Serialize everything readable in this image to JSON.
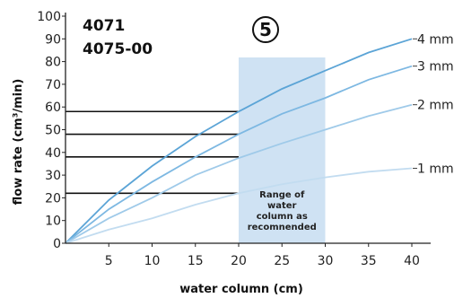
{
  "header": {
    "model_line_1": "4071",
    "model_line_2": "4075-00",
    "badge": "5"
  },
  "chart_data": {
    "type": "line",
    "xlabel": "water column (cm)",
    "ylabel": "flow rate (cm³/min)",
    "xlim": [
      0,
      45
    ],
    "ylim": [
      0,
      100
    ],
    "x_ticks": [
      5,
      10,
      15,
      20,
      25,
      30,
      35,
      40
    ],
    "y_ticks": [
      0,
      10,
      20,
      30,
      40,
      50,
      60,
      70,
      80,
      90,
      100
    ],
    "grid": false,
    "series": [
      {
        "name": "4 mm",
        "color": "#5ba4d6",
        "x": [
          0,
          5,
          10,
          15,
          20,
          25,
          30,
          35,
          40
        ],
        "y": [
          0,
          19,
          34,
          47,
          58,
          68,
          76,
          84,
          90
        ]
      },
      {
        "name": "3 mm",
        "color": "#7db8e2",
        "x": [
          0,
          5,
          10,
          15,
          20,
          25,
          30,
          35,
          40
        ],
        "y": [
          0,
          15,
          27,
          38,
          48,
          57,
          64,
          72,
          78
        ]
      },
      {
        "name": "2 mm",
        "color": "#9fcae9",
        "x": [
          0,
          5,
          10,
          15,
          20,
          25,
          30,
          35,
          40
        ],
        "y": [
          0,
          11,
          20,
          30,
          37.5,
          44,
          50,
          56,
          61
        ]
      },
      {
        "name": "1 mm",
        "color": "#c2dcf0",
        "x": [
          0,
          5,
          10,
          15,
          20,
          25,
          30,
          35,
          40
        ],
        "y": [
          0,
          6,
          11,
          17,
          22,
          26,
          29,
          31.5,
          33
        ]
      }
    ],
    "reference_lines_at_20cm": [
      58,
      48,
      38,
      22
    ],
    "highlight_band": {
      "x_range": [
        20,
        30
      ],
      "label": [
        "Range of",
        "water",
        "column as",
        "recomnended"
      ],
      "color": "#cfe2f3"
    }
  }
}
